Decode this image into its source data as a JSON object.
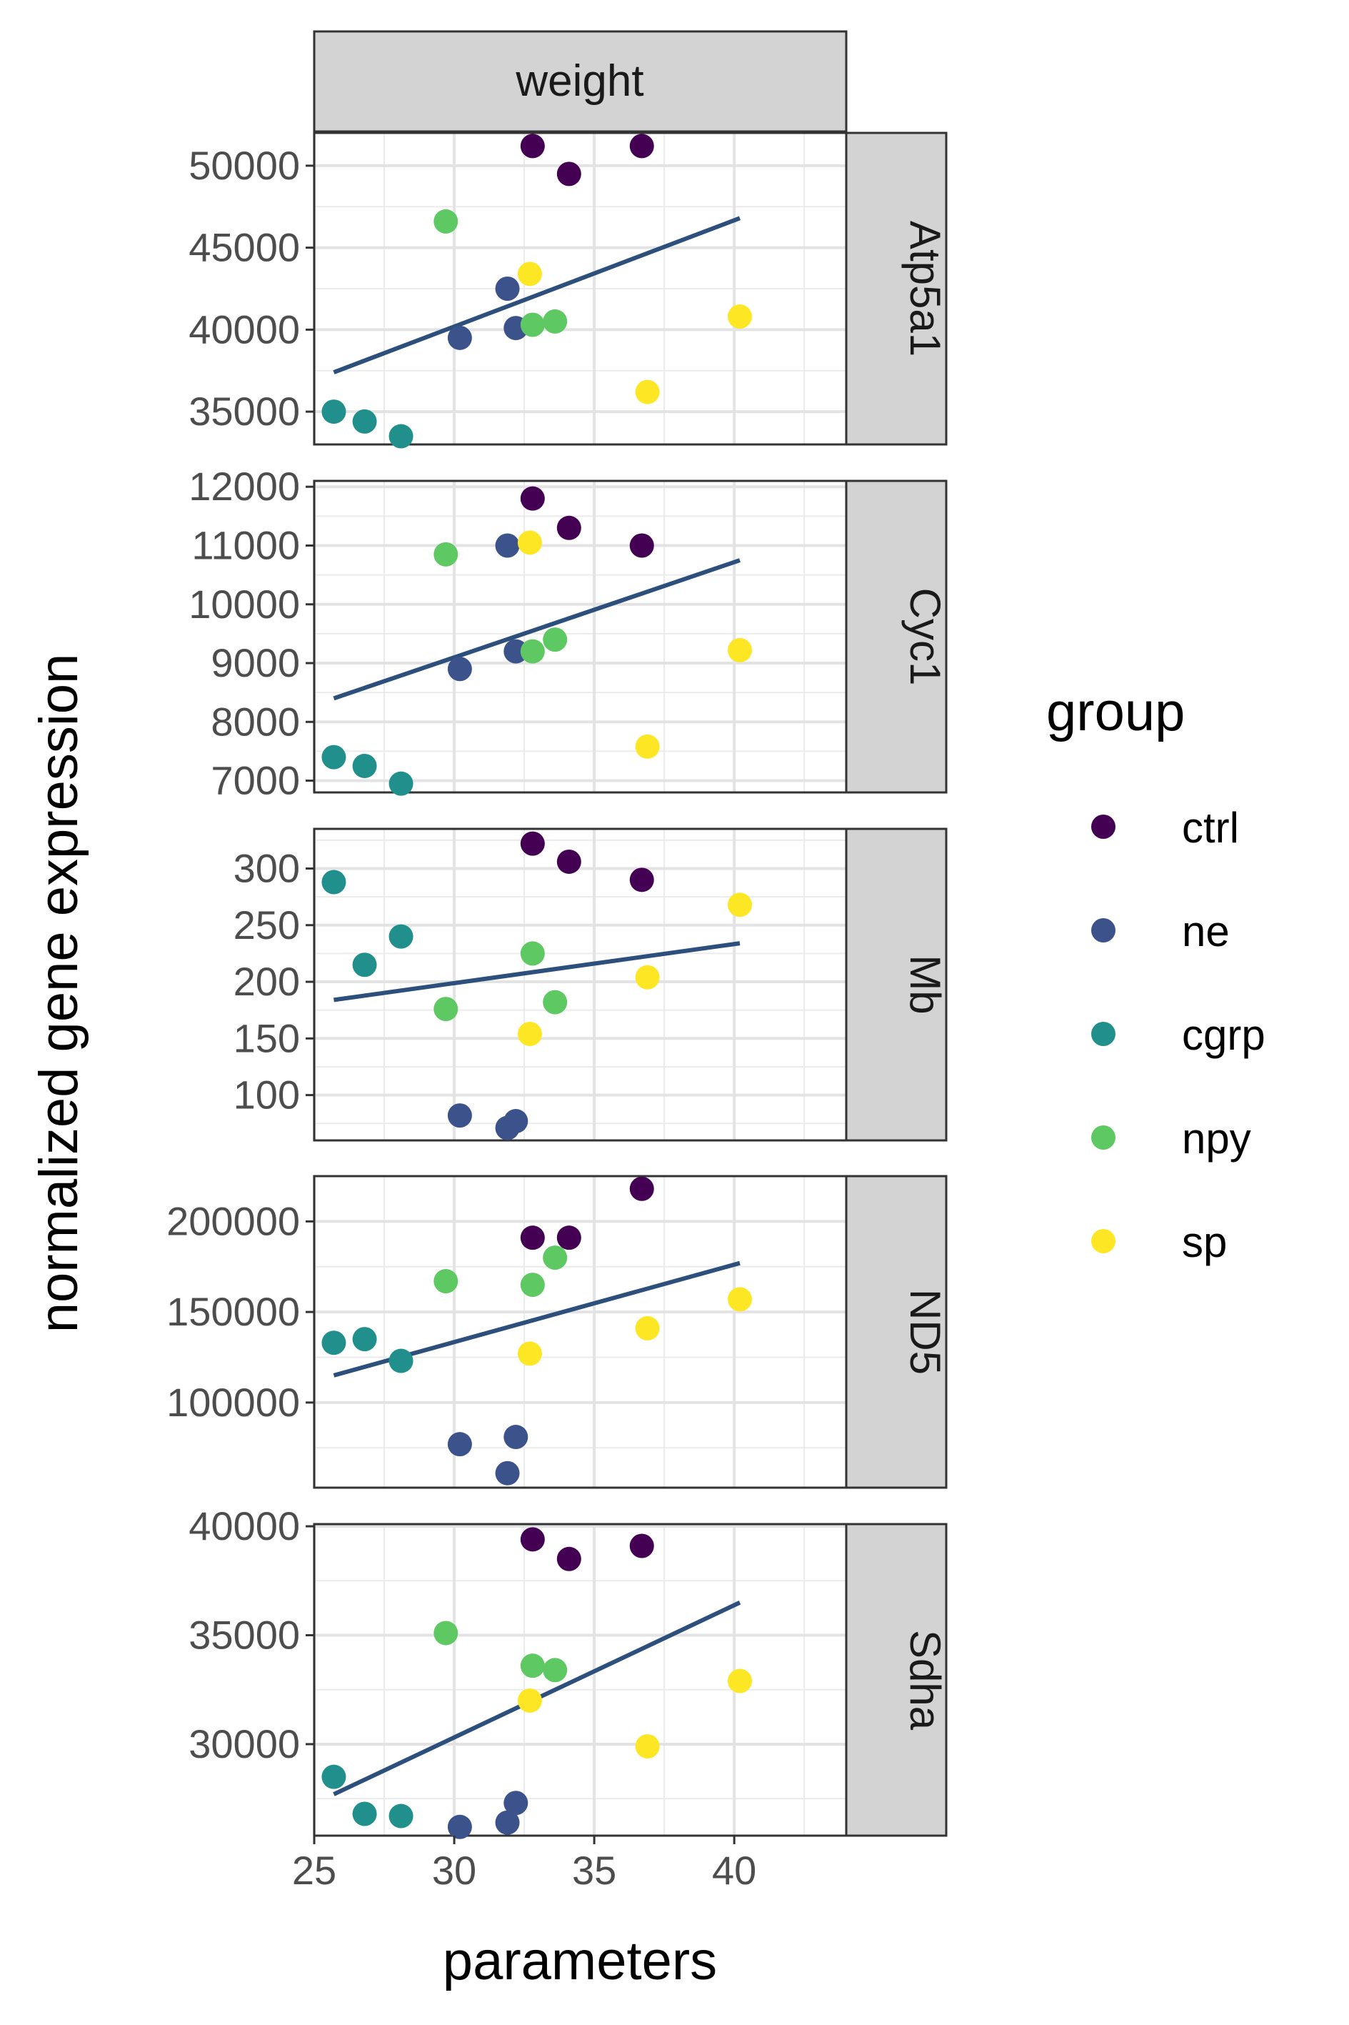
{
  "chart_data": {
    "type": "scatter",
    "facet_column": "weight",
    "xlabel": "parameters",
    "ylabel": "normalized gene expression",
    "x_ticks": [
      25,
      30,
      35,
      40
    ],
    "xlim": [
      25,
      44
    ],
    "grid": true,
    "legend": {
      "title": "group",
      "placement": "right",
      "entries": [
        {
          "name": "ctrl",
          "color": "#440154"
        },
        {
          "name": "ne",
          "color": "#3b528b"
        },
        {
          "name": "cgrp",
          "color": "#21908c"
        },
        {
          "name": "npy",
          "color": "#5ec962"
        },
        {
          "name": "sp",
          "color": "#fde725"
        }
      ]
    },
    "fit_line_color": "#2d4f7c",
    "panels": [
      {
        "label": "Atp5a1",
        "y_ticks": [
          35000,
          40000,
          45000,
          50000
        ],
        "y_tick_labels": [
          "35000",
          "40000",
          "45000",
          "50000"
        ],
        "ylim": [
          33000,
          52000
        ],
        "fit": {
          "x": [
            25.7,
            40.2
          ],
          "y": [
            37400,
            46800
          ]
        },
        "points": [
          {
            "x": 32.8,
            "y": 51200,
            "group": "ctrl"
          },
          {
            "x": 34.1,
            "y": 49500,
            "group": "ctrl"
          },
          {
            "x": 36.7,
            "y": 51200,
            "group": "ctrl"
          },
          {
            "x": 30.2,
            "y": 39500,
            "group": "ne"
          },
          {
            "x": 31.9,
            "y": 42500,
            "group": "ne"
          },
          {
            "x": 32.2,
            "y": 40100,
            "group": "ne"
          },
          {
            "x": 25.7,
            "y": 35000,
            "group": "cgrp"
          },
          {
            "x": 26.8,
            "y": 34400,
            "group": "cgrp"
          },
          {
            "x": 28.1,
            "y": 33500,
            "group": "cgrp"
          },
          {
            "x": 29.7,
            "y": 46600,
            "group": "npy"
          },
          {
            "x": 32.8,
            "y": 40300,
            "group": "npy"
          },
          {
            "x": 33.6,
            "y": 40500,
            "group": "npy"
          },
          {
            "x": 32.7,
            "y": 43400,
            "group": "sp"
          },
          {
            "x": 36.9,
            "y": 36200,
            "group": "sp"
          },
          {
            "x": 40.2,
            "y": 40800,
            "group": "sp"
          }
        ]
      },
      {
        "label": "Cyc1",
        "y_ticks": [
          7000,
          8000,
          9000,
          10000,
          11000,
          12000
        ],
        "y_tick_labels": [
          "7000",
          "8000",
          "9000",
          "10000",
          "11000",
          "12000"
        ],
        "ylim": [
          6800,
          12100
        ],
        "fit": {
          "x": [
            25.7,
            40.2
          ],
          "y": [
            8400,
            10750
          ]
        },
        "points": [
          {
            "x": 32.8,
            "y": 11800,
            "group": "ctrl"
          },
          {
            "x": 34.1,
            "y": 11300,
            "group": "ctrl"
          },
          {
            "x": 36.7,
            "y": 11000,
            "group": "ctrl"
          },
          {
            "x": 30.2,
            "y": 8900,
            "group": "ne"
          },
          {
            "x": 31.9,
            "y": 11000,
            "group": "ne"
          },
          {
            "x": 32.2,
            "y": 9200,
            "group": "ne"
          },
          {
            "x": 25.7,
            "y": 7400,
            "group": "cgrp"
          },
          {
            "x": 26.8,
            "y": 7250,
            "group": "cgrp"
          },
          {
            "x": 28.1,
            "y": 6950,
            "group": "cgrp"
          },
          {
            "x": 29.7,
            "y": 10850,
            "group": "npy"
          },
          {
            "x": 32.8,
            "y": 9200,
            "group": "npy"
          },
          {
            "x": 33.6,
            "y": 9400,
            "group": "npy"
          },
          {
            "x": 32.7,
            "y": 11050,
            "group": "sp"
          },
          {
            "x": 36.9,
            "y": 7580,
            "group": "sp"
          },
          {
            "x": 40.2,
            "y": 9220,
            "group": "sp"
          }
        ]
      },
      {
        "label": "Mb",
        "y_ticks": [
          100,
          150,
          200,
          250,
          300
        ],
        "y_tick_labels": [
          "100",
          "150",
          "200",
          "250",
          "300"
        ],
        "ylim": [
          60,
          335
        ],
        "fit": {
          "x": [
            25.7,
            40.2
          ],
          "y": [
            184,
            234
          ]
        },
        "points": [
          {
            "x": 32.8,
            "y": 322,
            "group": "ctrl"
          },
          {
            "x": 34.1,
            "y": 306,
            "group": "ctrl"
          },
          {
            "x": 36.7,
            "y": 290,
            "group": "ctrl"
          },
          {
            "x": 30.2,
            "y": 82,
            "group": "ne"
          },
          {
            "x": 31.9,
            "y": 71,
            "group": "ne"
          },
          {
            "x": 32.2,
            "y": 77,
            "group": "ne"
          },
          {
            "x": 25.7,
            "y": 288,
            "group": "cgrp"
          },
          {
            "x": 26.8,
            "y": 215,
            "group": "cgrp"
          },
          {
            "x": 28.1,
            "y": 240,
            "group": "cgrp"
          },
          {
            "x": 29.7,
            "y": 176,
            "group": "npy"
          },
          {
            "x": 32.8,
            "y": 225,
            "group": "npy"
          },
          {
            "x": 33.6,
            "y": 182,
            "group": "npy"
          },
          {
            "x": 32.7,
            "y": 154,
            "group": "sp"
          },
          {
            "x": 36.9,
            "y": 204,
            "group": "sp"
          },
          {
            "x": 40.2,
            "y": 268,
            "group": "sp"
          }
        ]
      },
      {
        "label": "ND5",
        "y_ticks": [
          100000,
          150000,
          200000
        ],
        "y_tick_labels": [
          "100000",
          "150000",
          "200000"
        ],
        "ylim": [
          53000,
          225000
        ],
        "fit": {
          "x": [
            25.7,
            40.2
          ],
          "y": [
            115000,
            177000
          ]
        },
        "points": [
          {
            "x": 32.8,
            "y": 191000,
            "group": "ctrl"
          },
          {
            "x": 34.1,
            "y": 191000,
            "group": "ctrl"
          },
          {
            "x": 36.7,
            "y": 218000,
            "group": "ctrl"
          },
          {
            "x": 30.2,
            "y": 77000,
            "group": "ne"
          },
          {
            "x": 31.9,
            "y": 61000,
            "group": "ne"
          },
          {
            "x": 32.2,
            "y": 81000,
            "group": "ne"
          },
          {
            "x": 25.7,
            "y": 133000,
            "group": "cgrp"
          },
          {
            "x": 26.8,
            "y": 135000,
            "group": "cgrp"
          },
          {
            "x": 28.1,
            "y": 123000,
            "group": "cgrp"
          },
          {
            "x": 29.7,
            "y": 167000,
            "group": "npy"
          },
          {
            "x": 32.8,
            "y": 165000,
            "group": "npy"
          },
          {
            "x": 33.6,
            "y": 180000,
            "group": "npy"
          },
          {
            "x": 32.7,
            "y": 127000,
            "group": "sp"
          },
          {
            "x": 36.9,
            "y": 141000,
            "group": "sp"
          },
          {
            "x": 40.2,
            "y": 157000,
            "group": "sp"
          }
        ]
      },
      {
        "label": "Sdha",
        "y_ticks": [
          30000,
          35000,
          40000
        ],
        "y_tick_labels": [
          "30000",
          "35000",
          "40000"
        ],
        "ylim": [
          25800,
          40100
        ],
        "fit": {
          "x": [
            25.7,
            40.2
          ],
          "y": [
            27700,
            36500
          ]
        },
        "points": [
          {
            "x": 32.8,
            "y": 39400,
            "group": "ctrl"
          },
          {
            "x": 34.1,
            "y": 38500,
            "group": "ctrl"
          },
          {
            "x": 36.7,
            "y": 39100,
            "group": "ctrl"
          },
          {
            "x": 30.2,
            "y": 26200,
            "group": "ne"
          },
          {
            "x": 31.9,
            "y": 26400,
            "group": "ne"
          },
          {
            "x": 32.2,
            "y": 27300,
            "group": "ne"
          },
          {
            "x": 25.7,
            "y": 28500,
            "group": "cgrp"
          },
          {
            "x": 26.8,
            "y": 26800,
            "group": "cgrp"
          },
          {
            "x": 28.1,
            "y": 26700,
            "group": "cgrp"
          },
          {
            "x": 29.7,
            "y": 35100,
            "group": "npy"
          },
          {
            "x": 32.8,
            "y": 33600,
            "group": "npy"
          },
          {
            "x": 33.6,
            "y": 33400,
            "group": "npy"
          },
          {
            "x": 32.7,
            "y": 32000,
            "group": "sp"
          },
          {
            "x": 36.9,
            "y": 29900,
            "group": "sp"
          },
          {
            "x": 40.2,
            "y": 32900,
            "group": "sp"
          }
        ]
      }
    ]
  }
}
